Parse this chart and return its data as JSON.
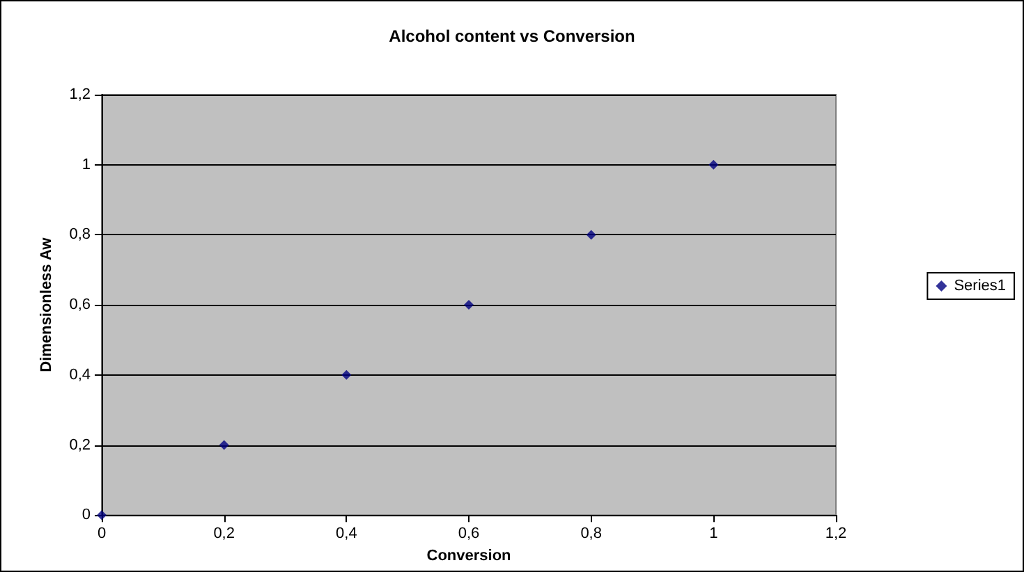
{
  "chart_data": {
    "type": "scatter",
    "title": "Alcohol content vs Conversion",
    "xlabel": "Conversion",
    "ylabel": "Dimensionless Aw",
    "x": [
      0,
      0.2,
      0.4,
      0.6,
      0.8,
      1
    ],
    "series": [
      {
        "name": "Series1",
        "color": "#000080",
        "values": [
          0,
          0.2,
          0.4,
          0.6,
          0.8,
          1
        ]
      }
    ],
    "xlim": [
      0,
      1.2
    ],
    "ylim": [
      0,
      1.2
    ],
    "xticks": [
      0,
      {
        "value": 0.2,
        "label": "0,2"
      },
      {
        "value": 0.4,
        "label": "0,4"
      },
      {
        "value": 0.6,
        "label": "0,6"
      },
      {
        "value": 0.8,
        "label": "0,8"
      },
      1,
      {
        "value": 1.2,
        "label": "1,2"
      }
    ],
    "yticks": [
      0,
      {
        "value": 0.2,
        "label": "0,2"
      },
      {
        "value": 0.4,
        "label": "0,4"
      },
      {
        "value": 0.6,
        "label": "0,6"
      },
      {
        "value": 0.8,
        "label": "0,8"
      },
      1,
      {
        "value": 1.2,
        "label": "1,2"
      }
    ],
    "grid": "y",
    "legend": "right",
    "marker": "diamond"
  }
}
